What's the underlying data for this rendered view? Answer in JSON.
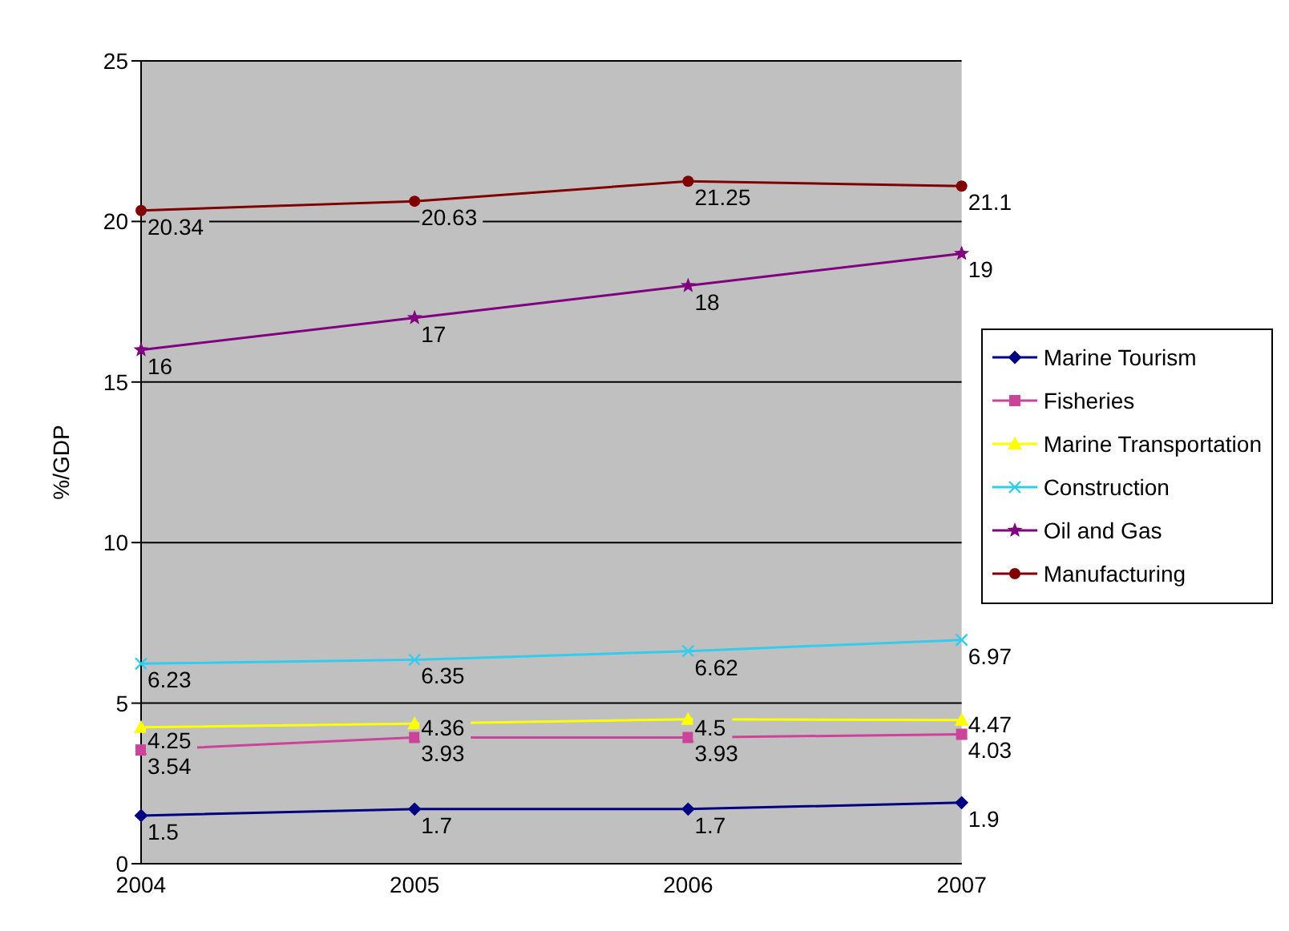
{
  "chart_data": {
    "type": "line",
    "ylabel": "%/GDP",
    "categories": [
      "2004",
      "2005",
      "2006",
      "2007"
    ],
    "series": [
      {
        "name": "Marine Tourism",
        "color": "#000080",
        "marker": "diamond",
        "values": [
          1.5,
          1.7,
          1.7,
          1.9
        ]
      },
      {
        "name": "Fisheries",
        "color": "#cc4499",
        "marker": "square",
        "values": [
          3.54,
          3.93,
          3.93,
          4.03
        ]
      },
      {
        "name": "Marine Transportation",
        "color": "#ffff00",
        "marker": "triangle",
        "values": [
          4.25,
          4.36,
          4.5,
          4.47
        ]
      },
      {
        "name": "Construction",
        "color": "#33ccee",
        "marker": "cross",
        "values": [
          6.23,
          6.35,
          6.62,
          6.97
        ]
      },
      {
        "name": "Oil and Gas",
        "color": "#800080",
        "marker": "star",
        "values": [
          16,
          17,
          18,
          19
        ]
      },
      {
        "name": "Manufacturing",
        "color": "#800000",
        "marker": "circle",
        "values": [
          20.34,
          20.63,
          21.25,
          21.1
        ]
      }
    ],
    "ylim": [
      0,
      25
    ],
    "yticks": [
      0,
      5,
      10,
      15,
      20,
      25
    ],
    "grid": "y",
    "legend": "right",
    "data_labels": true
  }
}
